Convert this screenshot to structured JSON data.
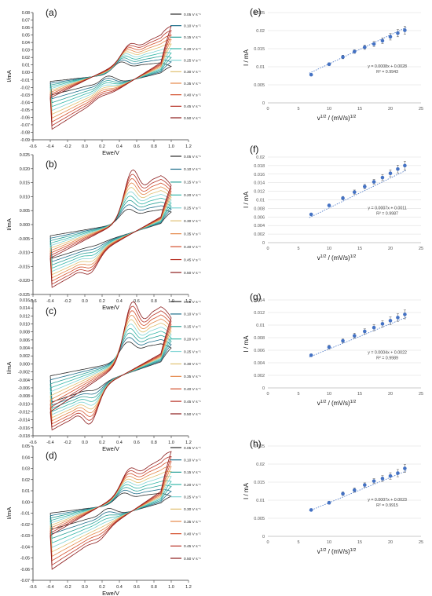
{
  "chart_data": [
    {
      "type": "line",
      "panel_label": "(a)",
      "xlabel": "Ewe/V",
      "ylabel": "I/mA",
      "xlim": [
        -0.6,
        1.2
      ],
      "ylim": [
        -0.09,
        0.08
      ],
      "xticks": [
        "-0.6",
        "-0.4",
        "-0.2",
        "0.0",
        "0.2",
        "0.4",
        "0.6",
        "0.8",
        "1.0",
        "1.2"
      ],
      "yticks": [
        "0.08",
        "0.07",
        "0.06",
        "0.05",
        "0.04",
        "0.03",
        "0.02",
        "0.01",
        "0.00",
        "-0.01",
        "-0.02",
        "-0.03",
        "-0.04",
        "-0.05",
        "-0.06",
        "-0.07",
        "-0.08",
        "-0.09"
      ],
      "legend": [
        "0.05 V s⁻¹",
        "0.10 V s⁻¹",
        "0.15 V s⁻¹",
        "0.20 V s⁻¹",
        "0.25 V s⁻¹",
        "0.30 V s⁻¹",
        "0.35 V s⁻¹",
        "0.40 V s⁻¹",
        "0.45 V s⁻¹",
        "0.50 V s⁻¹"
      ],
      "legend_position": "right",
      "curve": {
        "e_start": -0.4,
        "e_end": 1.0,
        "anodic_start": [
          -0.012,
          -0.034
        ],
        "anodic_peak": [
          0.014,
          0.038
        ],
        "anodic_end": [
          0.008,
          0.062
        ],
        "cathodic_peak": [
          -0.005,
          -0.034
        ],
        "cathodic_end": [
          -0.037,
          -0.08
        ],
        "peak_pos_a": [
          0.42,
          0.52
        ],
        "peak_pos_c": [
          0.26,
          0.16
        ],
        "peak_width": 0.13
      }
    },
    {
      "type": "line",
      "panel_label": "(b)",
      "xlabel": "Ewe/V",
      "ylabel": "I/mA",
      "xlim": [
        -0.6,
        1.2
      ],
      "ylim": [
        -0.025,
        0.025
      ],
      "xticks": [
        "-0.6",
        "-0.4",
        "-0.2",
        "0.0",
        "0.2",
        "0.4",
        "0.6",
        "0.8",
        "1.0",
        "1.2"
      ],
      "yticks": [
        "0.025",
        "0.020",
        "0.015",
        "0.010",
        "0.005",
        "0.000",
        "-0.005",
        "-0.010",
        "-0.015",
        "-0.020",
        "-0.025"
      ],
      "legend": [
        "0.05 V s⁻¹",
        "0.10 V s⁻¹",
        "0.15 V s⁻¹",
        "0.20 V s⁻¹",
        "0.25 V s⁻¹",
        "0.30 V s⁻¹",
        "0.35 V s⁻¹",
        "0.40 V s⁻¹",
        "0.45 V s⁻¹",
        "0.50 V s⁻¹"
      ],
      "legend_position": "right",
      "curve": {
        "e_start": -0.4,
        "e_end": 1.0,
        "anodic_start": [
          -0.004,
          -0.012
        ],
        "anodic_peak": [
          0.0055,
          0.0195
        ],
        "anodic_end": [
          0.0045,
          0.014
        ],
        "cathodic_peak": [
          -0.0075,
          -0.0175
        ],
        "cathodic_end": [
          -0.012,
          -0.02
        ],
        "peak_pos_a": [
          0.5,
          0.55
        ],
        "peak_pos_c": [
          0.12,
          0.06
        ],
        "peak_width": 0.13
      }
    },
    {
      "type": "line",
      "panel_label": "(c)",
      "xlabel": "Ewe/V",
      "ylabel": "I/mA",
      "xlim": [
        -0.6,
        1.2
      ],
      "ylim": [
        -0.018,
        0.016
      ],
      "xticks": [
        "-0.6",
        "-0.4",
        "-0.2",
        "0.0",
        "0.2",
        "0.4",
        "0.6",
        "0.8",
        "1.0",
        "1.2"
      ],
      "yticks": [
        "0.016",
        "0.014",
        "0.012",
        "0.010",
        "0.008",
        "0.006",
        "0.004",
        "0.002",
        "0.000",
        "-0.002",
        "-0.004",
        "-0.006",
        "-0.008",
        "-0.010",
        "-0.012",
        "-0.014",
        "-0.016",
        "-0.018"
      ],
      "legend": [
        "0.05 V s⁻¹",
        "0.10 V s⁻¹",
        "0.15 V s⁻¹",
        "0.20 V s⁻¹",
        "0.25 V s⁻¹",
        "0.30 V s⁻¹",
        "0.35 V s⁻¹",
        "0.40 V s⁻¹",
        "0.45 V s⁻¹",
        "0.50 V s⁻¹"
      ],
      "legend_position": "right",
      "curve": {
        "e_start": -0.4,
        "e_end": 1.0,
        "anodic_start": [
          -0.003,
          -0.012
        ],
        "anodic_peak": [
          0.0055,
          0.0155
        ],
        "anodic_end": [
          0.004,
          0.0115
        ],
        "cathodic_peak": [
          -0.0065,
          -0.015
        ],
        "cathodic_end": [
          -0.009,
          -0.013
        ],
        "peak_pos_a": [
          0.5,
          0.55
        ],
        "peak_pos_c": [
          0.12,
          0.06
        ],
        "peak_width": 0.13
      }
    },
    {
      "type": "line",
      "panel_label": "(d)",
      "xlabel": "Ewe/V",
      "ylabel": "I/mA",
      "xlim": [
        -0.6,
        1.2
      ],
      "ylim": [
        -0.07,
        0.05
      ],
      "xticks": [
        "-0.6",
        "-0.4",
        "-0.2",
        "0.0",
        "0.2",
        "0.4",
        "0.6",
        "0.8",
        "1.0",
        "1.2"
      ],
      "yticks": [
        "0.05",
        "0.04",
        "0.03",
        "0.02",
        "0.01",
        "0.00",
        "-0.01",
        "-0.02",
        "-0.03",
        "-0.04",
        "-0.05",
        "-0.06",
        "-0.07"
      ],
      "legend": [
        "0.05 V s⁻¹",
        "0.10 V s⁻¹",
        "0.15 V s⁻¹",
        "0.20 V s⁻¹",
        "0.25 V s⁻¹",
        "0.30 V s⁻¹",
        "0.35 V s⁻¹",
        "0.40 V s⁻¹",
        "0.45 V s⁻¹",
        "0.50 V s⁻¹"
      ],
      "legend_position": "right",
      "curve": {
        "e_start": -0.4,
        "e_end": 1.0,
        "anodic_start": [
          -0.01,
          -0.03
        ],
        "anodic_peak": [
          0.008,
          0.03
        ],
        "anodic_end": [
          0.005,
          0.045
        ],
        "cathodic_peak": [
          -0.006,
          -0.035
        ],
        "cathodic_end": [
          -0.029,
          -0.058
        ],
        "peak_pos_a": [
          0.45,
          0.52
        ],
        "peak_pos_c": [
          0.26,
          0.16
        ],
        "peak_width": 0.13
      }
    },
    {
      "type": "scatter",
      "panel_label": "(e)",
      "xlabel": "v",
      "xlabel_sup": "1/2",
      "xlabel_rest": " / (mV/s)",
      "xlabel_sup2": "1/2",
      "ylabel": "I / mA",
      "xlim": [
        0,
        25
      ],
      "ylim": [
        0,
        0.025
      ],
      "xticks": [
        "0",
        "5",
        "10",
        "15",
        "20",
        "25"
      ],
      "yticks": [
        "0.025",
        "0.02",
        "0.015",
        "0.01",
        "0.005",
        "0"
      ],
      "x": [
        7.07,
        10.0,
        12.25,
        14.14,
        15.81,
        17.32,
        18.71,
        20.0,
        21.21,
        22.36
      ],
      "y": [
        0.0078,
        0.0107,
        0.0127,
        0.0142,
        0.0154,
        0.0163,
        0.0172,
        0.0183,
        0.0193,
        0.0201
      ],
      "error": [
        0.0003,
        0.0004,
        0.0005,
        0.0005,
        0.0006,
        0.0007,
        0.0008,
        0.0009,
        0.001,
        0.0011
      ],
      "fit": {
        "slope": 0.0008,
        "intercept": 0.0028
      },
      "equation": "y = 0.0008x + 0.0028",
      "r2": "R² = 0.9943"
    },
    {
      "type": "scatter",
      "panel_label": "(f)",
      "xlabel": "v",
      "xlabel_sup": "1/2",
      "xlabel_rest": " / (mV/s)",
      "xlabel_sup2": "1/2",
      "ylabel": "I / mA",
      "xlim": [
        0,
        25
      ],
      "ylim": [
        0,
        0.02
      ],
      "xticks": [
        "0",
        "5",
        "10",
        "15",
        "20",
        "25"
      ],
      "yticks": [
        "0.02",
        "0.018",
        "0.016",
        "0.014",
        "0.012",
        "0.01",
        "0.008",
        "0.006",
        "0.004",
        "0.002",
        "0"
      ],
      "x": [
        7.07,
        10.0,
        12.25,
        14.14,
        15.81,
        17.32,
        18.71,
        20.0,
        21.21,
        22.36
      ],
      "y": [
        0.0066,
        0.0087,
        0.0104,
        0.0118,
        0.0131,
        0.0142,
        0.0152,
        0.0162,
        0.0172,
        0.018
      ],
      "error": [
        0.0002,
        0.0003,
        0.0004,
        0.0005,
        0.0005,
        0.0006,
        0.0007,
        0.0008,
        0.0009,
        0.001
      ],
      "fit": {
        "slope": 0.0007,
        "intercept": 0.0011
      },
      "equation": "y = 0.0007x + 0.0011",
      "r2": "R² = 0.9987"
    },
    {
      "type": "scatter",
      "panel_label": "(g)",
      "xlabel": "v",
      "xlabel_sup": "1/2",
      "xlabel_rest": " / (mV/s)",
      "xlabel_sup2": "1/2",
      "ylabel": "I / mA",
      "xlim": [
        0,
        25
      ],
      "ylim": [
        0,
        0.014
      ],
      "xticks": [
        "0",
        "5",
        "10",
        "15",
        "20",
        "25"
      ],
      "yticks": [
        "0.014",
        "0.012",
        "0.01",
        "0.008",
        "0.006",
        "0.004",
        "0.002",
        "0"
      ],
      "x": [
        7.07,
        10.0,
        12.25,
        14.14,
        15.81,
        17.32,
        18.71,
        20.0,
        21.21,
        22.36
      ],
      "y": [
        0.0052,
        0.0065,
        0.0075,
        0.0083,
        0.009,
        0.0096,
        0.0102,
        0.0107,
        0.0112,
        0.0117
      ],
      "error": [
        0.0002,
        0.0003,
        0.0003,
        0.0004,
        0.0004,
        0.0005,
        0.0005,
        0.0006,
        0.0006,
        0.0007
      ],
      "fit": {
        "slope": 0.0004,
        "intercept": 0.0022
      },
      "equation": "y = 0.0004x + 0.0022",
      "r2": "R² = 0.9989"
    },
    {
      "type": "scatter",
      "panel_label": "(h)",
      "xlabel": "v",
      "xlabel_sup": "1/2",
      "xlabel_rest": " / (mV/s)",
      "xlabel_sup2": "1/2",
      "ylabel": "I / mA",
      "xlim": [
        0,
        25
      ],
      "ylim": [
        0,
        0.025
      ],
      "xticks": [
        "0",
        "5",
        "10",
        "15",
        "20",
        "25"
      ],
      "yticks": [
        "0.025",
        "0.02",
        "0.015",
        "0.01",
        "0.005",
        "0"
      ],
      "x": [
        7.07,
        10.0,
        12.25,
        14.14,
        15.81,
        17.32,
        18.71,
        20.0,
        21.21,
        22.36
      ],
      "y": [
        0.0073,
        0.0093,
        0.0118,
        0.0128,
        0.0142,
        0.0153,
        0.016,
        0.0167,
        0.0175,
        0.0188
      ],
      "error": [
        0.0003,
        0.0004,
        0.0005,
        0.0006,
        0.0006,
        0.0007,
        0.0008,
        0.0009,
        0.001,
        0.0011
      ],
      "fit": {
        "slope": 0.0007,
        "intercept": 0.0023
      },
      "equation": "y = 0.0007x + 0.0023",
      "r2": "R² = 0.9915"
    }
  ],
  "colors": {
    "series": [
      "#2b2b2b",
      "#1f6f8b",
      "#2aa198",
      "#35b7a8",
      "#7fd4d4",
      "#e0c070",
      "#e5894a",
      "#d4502d",
      "#b83226",
      "#8b1a1a"
    ],
    "marker": "#4472c4",
    "fit_line": "#4472c4",
    "axis": "#333333",
    "grid": "#d9d9d9"
  }
}
